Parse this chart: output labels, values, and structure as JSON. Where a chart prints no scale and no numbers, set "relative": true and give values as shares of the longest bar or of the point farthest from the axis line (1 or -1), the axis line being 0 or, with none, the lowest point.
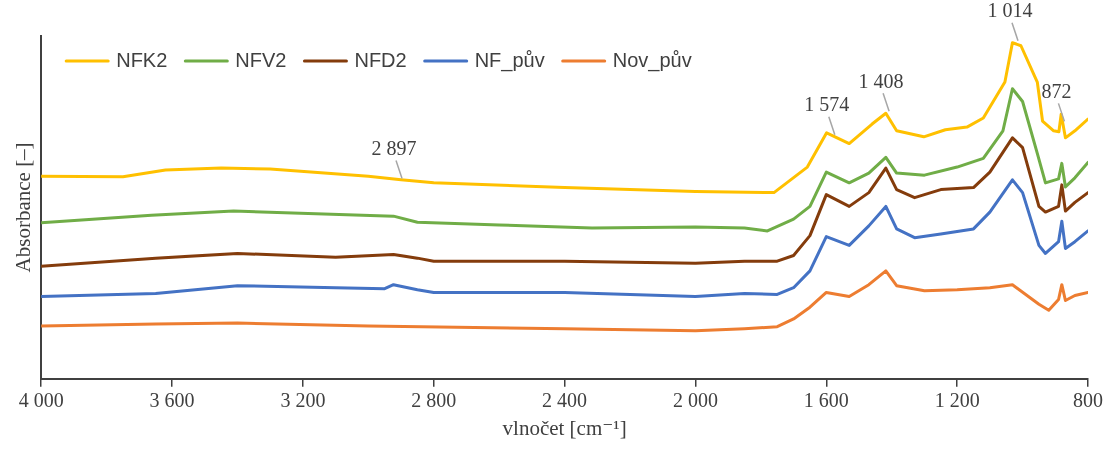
{
  "chart_data": {
    "type": "line",
    "relative": true,
    "xlabel": "vlnočet [cm⁻¹]",
    "ylabel": "Absorbance [–]",
    "xlim": [
      4000,
      800
    ],
    "xticks": [
      {
        "value": 4000,
        "label": "4 000"
      },
      {
        "value": 3600,
        "label": "3 600"
      },
      {
        "value": 3200,
        "label": "3 200"
      },
      {
        "value": 2800,
        "label": "2 800"
      },
      {
        "value": 2400,
        "label": "2 400"
      },
      {
        "value": 2000,
        "label": "2 000"
      },
      {
        "value": 1600,
        "label": "1 600"
      },
      {
        "value": 1200,
        "label": "1 200"
      },
      800
    ],
    "grid": false,
    "legend": "top left",
    "marker": "none",
    "line_style": "solid",
    "series": [
      {
        "name": "NFK2",
        "color": "#ffc000",
        "x": [
          4000,
          3750,
          3620,
          3450,
          3300,
          3000,
          2900,
          2800,
          2400,
          2000,
          1760,
          1658,
          1599,
          1530,
          1460,
          1418,
          1385,
          1302,
          1236,
          1170,
          1120,
          1054,
          1031,
          1005,
          955,
          939,
          905,
          889,
          882,
          869,
          840,
          800
        ],
        "values": [
          0.603,
          0.601,
          0.621,
          0.627,
          0.624,
          0.603,
          0.592,
          0.583,
          0.569,
          0.557,
          0.554,
          0.63,
          0.732,
          0.7,
          0.758,
          0.79,
          0.738,
          0.72,
          0.741,
          0.749,
          0.776,
          0.883,
          1.0,
          0.991,
          0.883,
          0.767,
          0.738,
          0.735,
          0.787,
          0.717,
          0.738,
          0.773
        ]
      },
      {
        "name": "NFV2",
        "color": "#70ad47",
        "x": [
          4000,
          3663,
          3412,
          2923,
          2850,
          2600,
          2316,
          2000,
          1850,
          1780,
          1700,
          1650,
          1600,
          1530,
          1470,
          1418,
          1385,
          1300,
          1200,
          1120,
          1060,
          1031,
          1000,
          955,
          930,
          890,
          880,
          869,
          840,
          800
        ],
        "values": [
          0.464,
          0.487,
          0.499,
          0.484,
          0.466,
          0.458,
          0.449,
          0.452,
          0.449,
          0.44,
          0.475,
          0.513,
          0.615,
          0.583,
          0.612,
          0.659,
          0.612,
          0.606,
          0.63,
          0.656,
          0.738,
          0.863,
          0.825,
          0.671,
          0.583,
          0.595,
          0.641,
          0.571,
          0.598,
          0.644
        ]
      },
      {
        "name": "NFD2",
        "color": "#843c0c",
        "x": [
          4000,
          3650,
          3400,
          3100,
          2923,
          2850,
          2800,
          2400,
          2000,
          1850,
          1750,
          1700,
          1650,
          1600,
          1530,
          1470,
          1418,
          1385,
          1330,
          1250,
          1150,
          1100,
          1031,
          1000,
          950,
          930,
          890,
          880,
          869,
          840,
          800
        ],
        "values": [
          0.335,
          0.359,
          0.373,
          0.362,
          0.37,
          0.359,
          0.35,
          0.35,
          0.344,
          0.35,
          0.35,
          0.367,
          0.426,
          0.548,
          0.513,
          0.554,
          0.627,
          0.563,
          0.539,
          0.563,
          0.569,
          0.615,
          0.717,
          0.688,
          0.513,
          0.496,
          0.513,
          0.577,
          0.499,
          0.525,
          0.554
        ]
      },
      {
        "name": "NF_pův",
        "color": "#4472c4",
        "x": [
          4000,
          3650,
          3400,
          3100,
          2950,
          2923,
          2850,
          2800,
          2400,
          2000,
          1850,
          1750,
          1700,
          1650,
          1600,
          1530,
          1470,
          1418,
          1385,
          1330,
          1250,
          1150,
          1100,
          1031,
          1000,
          950,
          930,
          890,
          880,
          869,
          840,
          800
        ],
        "values": [
          0.245,
          0.254,
          0.277,
          0.271,
          0.268,
          0.28,
          0.265,
          0.257,
          0.257,
          0.245,
          0.254,
          0.251,
          0.271,
          0.321,
          0.423,
          0.397,
          0.455,
          0.513,
          0.446,
          0.42,
          0.431,
          0.446,
          0.496,
          0.592,
          0.554,
          0.397,
          0.373,
          0.408,
          0.469,
          0.388,
          0.408,
          0.44
        ]
      },
      {
        "name": "Nov_pův",
        "color": "#ed7d31",
        "x": [
          4000,
          3650,
          3400,
          3000,
          2400,
          2000,
          1850,
          1750,
          1700,
          1650,
          1600,
          1530,
          1470,
          1418,
          1385,
          1300,
          1200,
          1100,
          1031,
          950,
          920,
          890,
          880,
          869,
          840,
          800
        ],
        "values": [
          0.157,
          0.163,
          0.166,
          0.157,
          0.149,
          0.143,
          0.149,
          0.155,
          0.178,
          0.213,
          0.257,
          0.245,
          0.28,
          0.321,
          0.277,
          0.262,
          0.265,
          0.271,
          0.28,
          0.222,
          0.204,
          0.236,
          0.28,
          0.233,
          0.248,
          0.257
        ]
      }
    ],
    "annotations": [
      {
        "text": "2 897",
        "x": 2897,
        "y": 0.59
      },
      {
        "text": "1 574",
        "x": 1574,
        "y": 0.72
      },
      {
        "text": "1 408",
        "x": 1408,
        "y": 0.79
      },
      {
        "text": "1 014",
        "x": 1014,
        "y": 1.0
      },
      {
        "text": "872",
        "x": 872,
        "y": 0.76
      }
    ]
  }
}
